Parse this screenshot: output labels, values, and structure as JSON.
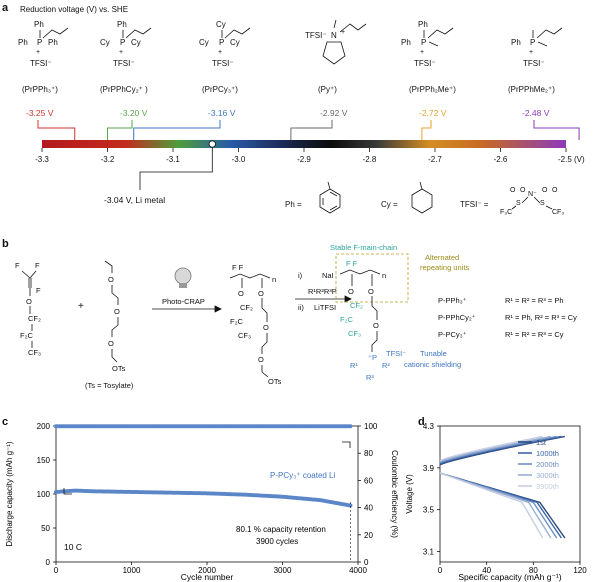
{
  "panel_a": {
    "letter": "a",
    "title": "Reduction voltage (V) vs. SHE",
    "compounds": [
      {
        "label": "(PrPPh₃⁺)",
        "voltage": "-3.25 V",
        "value": -3.25,
        "color": "#d0332c"
      },
      {
        "label": "(PrPPhCy₂⁺ )",
        "voltage": "-3.20 V",
        "value": -3.2,
        "color": "#5aa64a"
      },
      {
        "label": "(PrPCy₃⁺)",
        "voltage": "-3.16 V",
        "value": -3.16,
        "color": "#3f74c4"
      },
      {
        "label": "(Py⁺)",
        "voltage": "-2.92 V",
        "value": -2.92,
        "color": "#6b6b6b"
      },
      {
        "label": "(PrPPh₂Me⁺)",
        "voltage": "-2.72 V",
        "value": -2.72,
        "color": "#e9a22a"
      },
      {
        "label": "(PrPPhMe₂⁺)",
        "voltage": "-2.48 V",
        "value": -2.48,
        "color": "#8a3ab9"
      }
    ],
    "anion": "TFSI⁻",
    "scale_ticks": [
      "-3.3",
      "-3.2",
      "-3.1",
      "-3.0",
      "-2.9",
      "-2.8",
      "-2.7",
      "-2.6",
      "-2.5 (V)"
    ],
    "li_metal": "-3.04 V, Li metal",
    "legend": {
      "ph": "Ph =",
      "cy": "Cy =",
      "tfsi": "TFSI⁻ ="
    }
  },
  "panel_b": {
    "letter": "b",
    "plus": "+",
    "ts_note": "(Ts = Tosylate)",
    "ots": "OTs",
    "method": "Photo-CRAP",
    "step1": "i)",
    "reagent1": "NaI",
    "reagent2": "R¹R²R³P",
    "step2": "ii)",
    "reagent3": "LiTFSI",
    "stable_chain": "Stable F-main-chain",
    "alternated": "Alternated",
    "repeating": "repeating units",
    "tunable": "Tunable",
    "shielding": "cationic shielding",
    "polymers": [
      {
        "name": "P-PPh₃⁺",
        "def": "R¹ = R² = R³ = Ph"
      },
      {
        "name": "P-PPhCy₂⁺",
        "def": "R¹ = Ph, R² = R³ = Cy"
      },
      {
        "name": "P-PCy₃⁺",
        "def": "R¹ = R² = R³ = Cy"
      }
    ]
  },
  "panel_c": {
    "letter": "c",
    "chart_data": {
      "type": "scatter",
      "xlabel": "Cycle number",
      "ylabel": "Discharge capacity  (mAh g⁻¹)",
      "y2label": "Coulombic efficiency (%)",
      "xlim": [
        0,
        4000
      ],
      "ylim": [
        0,
        200
      ],
      "y2lim": [
        0,
        100
      ],
      "xticks": [
        "0",
        "1000",
        "2000",
        "3000",
        "4000"
      ],
      "yticks": [
        "0",
        "50",
        "100",
        "150",
        "200"
      ],
      "y2ticks": [
        "0",
        "20",
        "40",
        "60",
        "80",
        "100"
      ],
      "series": [
        {
          "name": "P-PCy₃⁺ coated Li",
          "x": [
            0,
            250,
            500,
            1000,
            1500,
            2000,
            2500,
            3000,
            3500,
            3900
          ],
          "y": [
            103,
            105,
            104,
            103,
            102,
            101,
            99,
            96,
            91,
            83
          ]
        },
        {
          "x": [
            0,
            1000,
            2000,
            3000,
            3900
          ],
          "y": [
            99.8,
            99.8,
            99.8,
            99.8,
            99.8
          ],
          "axis": "right"
        }
      ],
      "annotations": [
        "10 C",
        "80.1 % capacity retention",
        "3900 cycles"
      ]
    }
  },
  "panel_d": {
    "letter": "d",
    "chart_data": {
      "type": "line",
      "xlabel": "Specific capacity  (mAh g⁻¹)",
      "ylabel": "Voltage (V)",
      "xlim": [
        0,
        120
      ],
      "ylim": [
        3.0,
        4.3
      ],
      "xticks": [
        "0",
        "40",
        "80",
        "120"
      ],
      "yticks": [
        "3.1",
        "3.5",
        "3.9",
        "4.3"
      ],
      "series": [
        {
          "name": "1st",
          "color": "#2a4a80"
        },
        {
          "name": "1000th",
          "color": "#3d66a8"
        },
        {
          "name": "2000th",
          "color": "#6f8fc4"
        },
        {
          "name": "3000th",
          "color": "#9aafd3"
        },
        {
          "name": "3900th",
          "color": "#c4cee2"
        }
      ],
      "discharge_capacity": [
        107,
        104,
        100,
        95,
        88
      ],
      "discharge_end_voltage": [
        3.05,
        3.05,
        3.05,
        3.05,
        3.05
      ],
      "charge_start_voltage": [
        3.93,
        3.94,
        3.95,
        3.96,
        3.97
      ]
    }
  }
}
